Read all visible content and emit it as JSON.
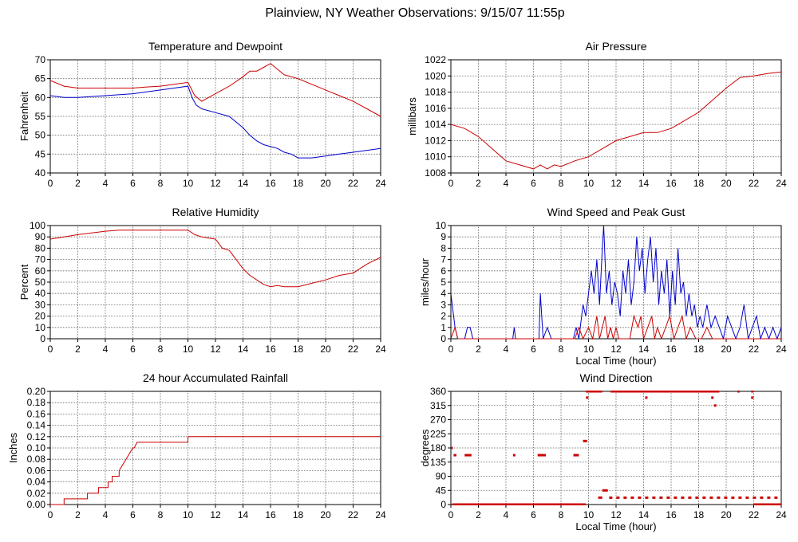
{
  "page_title": "Plainview, NY Weather Observations: 9/15/07 11:55p",
  "chart_data": [
    {
      "id": "temperature",
      "type": "line",
      "title": "Temperature and Dewpoint",
      "xlabel": "",
      "ylabel": "Fahrenheit",
      "xlim": [
        0,
        24
      ],
      "ylim": [
        40,
        70
      ],
      "xticks": [
        0,
        2,
        4,
        6,
        8,
        10,
        12,
        14,
        16,
        18,
        20,
        22,
        24
      ],
      "yticks": [
        40,
        45,
        50,
        55,
        60,
        65,
        70
      ],
      "grid": true,
      "series": [
        {
          "color": "#cc0000",
          "x": [
            0,
            1,
            2,
            4,
            6,
            7,
            8,
            9,
            10,
            10.5,
            11,
            11.5,
            12,
            13,
            14,
            14.5,
            15,
            15.5,
            16,
            16.5,
            17,
            18,
            19,
            20,
            21,
            22,
            23,
            24
          ],
          "y": [
            64.5,
            63,
            62.5,
            62.5,
            62.5,
            62.8,
            63,
            63.5,
            64,
            60.5,
            59,
            60,
            61,
            63,
            65.5,
            67,
            67,
            68,
            69,
            67.5,
            66,
            65,
            63.5,
            62,
            60.5,
            59,
            57,
            55
          ]
        },
        {
          "color": "#0000cc",
          "x": [
            0,
            1,
            2,
            4,
            6,
            7,
            8,
            9,
            10,
            10.3,
            10.6,
            11,
            11.5,
            12,
            13,
            14,
            14.5,
            15,
            15.5,
            16,
            16.5,
            17,
            17.5,
            18,
            19,
            20,
            21,
            22,
            23,
            24
          ],
          "y": [
            60.5,
            60,
            60,
            60.5,
            61,
            61.5,
            62,
            62.5,
            63,
            60,
            58,
            57,
            56.5,
            56,
            55,
            52,
            50,
            48.5,
            47.5,
            47,
            46.5,
            45.5,
            45,
            44,
            44,
            44.5,
            45,
            45.5,
            46,
            46.5
          ]
        }
      ]
    },
    {
      "id": "pressure",
      "type": "line",
      "title": "Air Pressure",
      "xlabel": "",
      "ylabel": "millibars",
      "xlim": [
        0,
        24
      ],
      "ylim": [
        1008,
        1022
      ],
      "xticks": [
        0,
        2,
        4,
        6,
        8,
        10,
        12,
        14,
        16,
        18,
        20,
        22,
        24
      ],
      "yticks": [
        1008,
        1010,
        1012,
        1014,
        1016,
        1018,
        1020,
        1022
      ],
      "grid": true,
      "series": [
        {
          "color": "#cc0000",
          "x": [
            0,
            1,
            2,
            3,
            4,
            5,
            6,
            6.5,
            7,
            7.5,
            8,
            9,
            10,
            11,
            12,
            13,
            14,
            15,
            16,
            17,
            18,
            19,
            20,
            21,
            22,
            23,
            24
          ],
          "y": [
            1014,
            1013.5,
            1012.5,
            1011,
            1009.5,
            1009,
            1008.5,
            1009,
            1008.5,
            1009,
            1008.8,
            1009.5,
            1010,
            1011,
            1012,
            1012.5,
            1013,
            1013,
            1013.5,
            1014.5,
            1015.5,
            1017,
            1018.5,
            1019.8,
            1020,
            1020.3,
            1020.5
          ]
        }
      ]
    },
    {
      "id": "humidity",
      "type": "line",
      "title": "Relative Humidity",
      "xlabel": "",
      "ylabel": "Percent",
      "xlim": [
        0,
        24
      ],
      "ylim": [
        0,
        100
      ],
      "xticks": [
        0,
        2,
        4,
        6,
        8,
        10,
        12,
        14,
        16,
        18,
        20,
        22,
        24
      ],
      "yticks": [
        0,
        10,
        20,
        30,
        40,
        50,
        60,
        70,
        80,
        90,
        100
      ],
      "grid": true,
      "series": [
        {
          "color": "#cc0000",
          "x": [
            0,
            1,
            2,
            4,
            5,
            6,
            8,
            10,
            10.5,
            11,
            12,
            12.5,
            13,
            13.5,
            14,
            14.5,
            15,
            15.5,
            16,
            16.5,
            17,
            18,
            19,
            20,
            21,
            22,
            23,
            24
          ],
          "y": [
            88,
            90,
            92,
            95,
            96,
            96,
            96,
            96,
            92,
            90,
            88,
            80,
            78,
            70,
            62,
            56,
            52,
            48,
            46,
            47,
            46,
            46,
            49,
            52,
            56,
            58,
            66,
            72
          ]
        }
      ]
    },
    {
      "id": "wind_speed",
      "type": "line",
      "title": "Wind Speed and Peak Gust",
      "xlabel": "Local Time (hour)",
      "ylabel": "miles/hour",
      "xlim": [
        0,
        24
      ],
      "ylim": [
        0,
        10
      ],
      "xticks": [
        0,
        2,
        4,
        6,
        8,
        10,
        12,
        14,
        16,
        18,
        20,
        22,
        24
      ],
      "yticks": [
        0,
        1,
        2,
        3,
        4,
        5,
        6,
        7,
        8,
        9,
        10
      ],
      "grid": true,
      "series": [
        {
          "color": "#0000cc",
          "x": [
            0,
            0.1,
            0.3,
            0.5,
            1.0,
            1.2,
            1.4,
            1.6,
            4.5,
            4.6,
            4.7,
            6.4,
            6.5,
            6.7,
            7.0,
            7.3,
            8.9,
            9.1,
            9.3,
            9.6,
            9.8,
            10.0,
            10.2,
            10.4,
            10.6,
            10.8,
            11.0,
            11.1,
            11.3,
            11.5,
            11.7,
            11.9,
            12.1,
            12.3,
            12.5,
            12.7,
            12.9,
            13.1,
            13.3,
            13.5,
            13.7,
            13.9,
            14.1,
            14.3,
            14.5,
            14.7,
            14.9,
            15.1,
            15.3,
            15.5,
            15.7,
            15.9,
            16.1,
            16.3,
            16.5,
            16.7,
            16.9,
            17.1,
            17.3,
            17.5,
            17.7,
            17.9,
            18.1,
            18.3,
            18.6,
            18.9,
            19.2,
            19.5,
            19.8,
            20.1,
            20.4,
            20.7,
            21.0,
            21.3,
            21.6,
            21.9,
            22.2,
            22.5,
            22.8,
            23.1,
            23.4,
            23.7,
            24.0
          ],
          "y": [
            4,
            3,
            1,
            0,
            0,
            1,
            1,
            0,
            0,
            1,
            0,
            0,
            4,
            0,
            1,
            0,
            0,
            1,
            0,
            3,
            2,
            4,
            6,
            4,
            7,
            3,
            8,
            10,
            4,
            6,
            3,
            5,
            4,
            2,
            6,
            4,
            7,
            3,
            5,
            9,
            6,
            8,
            4,
            7,
            9,
            5,
            8,
            3,
            6,
            4,
            7,
            2,
            6,
            3,
            8,
            4,
            5,
            2,
            4,
            2,
            3,
            1,
            2,
            1,
            3,
            1,
            2,
            1,
            0,
            2,
            1,
            0,
            1,
            3,
            0,
            1,
            2,
            0,
            1,
            0,
            1,
            0,
            1
          ]
        },
        {
          "color": "#cc0000",
          "x": [
            0,
            0.3,
            0.5,
            0.7,
            9.0,
            9.3,
            9.6,
            10.0,
            10.3,
            10.6,
            10.8,
            11.0,
            11.2,
            11.4,
            11.6,
            11.8,
            12.0,
            12.2,
            13.0,
            13.3,
            13.6,
            13.8,
            14.0,
            14.3,
            14.6,
            14.8,
            15.0,
            15.3,
            15.6,
            15.9,
            16.2,
            16.5,
            16.8,
            17.1,
            17.4,
            17.8,
            18.2,
            18.6,
            19.0,
            24.0
          ],
          "y": [
            0,
            1,
            0,
            0,
            0,
            1,
            0,
            1,
            0,
            2,
            0,
            1,
            2,
            0,
            1,
            0,
            1,
            0,
            0,
            2,
            1,
            2,
            0,
            1,
            2,
            0,
            1,
            0,
            1,
            2,
            0,
            1,
            2,
            0,
            1,
            0,
            0,
            1,
            0,
            0
          ]
        }
      ]
    },
    {
      "id": "rainfall",
      "type": "line",
      "title": "24 hour Accumulated Rainfall",
      "xlabel": "",
      "ylabel": "Inches",
      "xlim": [
        0,
        24
      ],
      "ylim": [
        0,
        0.2
      ],
      "xticks": [
        0,
        2,
        4,
        6,
        8,
        10,
        12,
        14,
        16,
        18,
        20,
        22,
        24
      ],
      "yticks": [
        0.0,
        0.02,
        0.04,
        0.06,
        0.08,
        0.1,
        0.12,
        0.14,
        0.16,
        0.18,
        0.2
      ],
      "ytick_labels": [
        "0.00",
        "0.02",
        "0.04",
        "0.06",
        "0.08",
        "0.10",
        "0.12",
        "0.14",
        "0.16",
        "0.18",
        "0.20"
      ],
      "grid": true,
      "series": [
        {
          "color": "#cc0000",
          "x": [
            0,
            1.0,
            1.0,
            2.7,
            2.7,
            3.5,
            3.5,
            4.2,
            4.2,
            4.5,
            4.5,
            5.0,
            5.0,
            5.5,
            6.0,
            6.1,
            6.3,
            10.0,
            10.0,
            24.0
          ],
          "y": [
            0,
            0,
            0.01,
            0.01,
            0.02,
            0.02,
            0.03,
            0.03,
            0.04,
            0.04,
            0.05,
            0.05,
            0.06,
            0.08,
            0.1,
            0.1,
            0.11,
            0.11,
            0.12,
            0.12
          ]
        }
      ]
    },
    {
      "id": "wind_direction",
      "type": "scatter",
      "title": "Wind Direction",
      "xlabel": "Local Time (hour)",
      "ylabel": "degrees",
      "xlim": [
        0,
        24
      ],
      "ylim": [
        0,
        360
      ],
      "xticks": [
        0,
        2,
        4,
        6,
        8,
        10,
        12,
        14,
        16,
        18,
        20,
        22,
        24
      ],
      "yticks": [
        0,
        45,
        90,
        135,
        180,
        225,
        270,
        315,
        360
      ],
      "grid": true,
      "segments_color": "#cc0000",
      "segments": [
        {
          "x0": 0.1,
          "x1": 9.8,
          "y": 0
        },
        {
          "x0": 10.7,
          "x1": 11.0,
          "y": 22
        },
        {
          "x0": 11.0,
          "x1": 11.4,
          "y": 45
        },
        {
          "x0": 11.5,
          "x1": 24.0,
          "y": 22,
          "dashed": true
        },
        {
          "x0": 9.8,
          "x1": 11.0,
          "y": 360
        },
        {
          "x0": 11.6,
          "x1": 19.5,
          "y": 360
        },
        {
          "x0": 9.6,
          "x1": 9.9,
          "y": 202
        },
        {
          "x0": 0.2,
          "x1": 0.4,
          "y": 157
        },
        {
          "x0": 1.0,
          "x1": 1.5,
          "y": 157
        },
        {
          "x0": 6.3,
          "x1": 6.9,
          "y": 157
        },
        {
          "x0": 8.9,
          "x1": 9.3,
          "y": 157
        },
        {
          "x0": 22.0,
          "x1": 24.0,
          "y": 0
        }
      ],
      "points": [
        {
          "x": 0.05,
          "y": 180
        },
        {
          "x": 4.6,
          "y": 157
        },
        {
          "x": 9.9,
          "y": 340
        },
        {
          "x": 14.2,
          "y": 340
        },
        {
          "x": 19.0,
          "y": 340
        },
        {
          "x": 19.2,
          "y": 315
        },
        {
          "x": 20.9,
          "y": 360
        },
        {
          "x": 21.9,
          "y": 340
        },
        {
          "x": 21.9,
          "y": 360
        }
      ]
    }
  ]
}
